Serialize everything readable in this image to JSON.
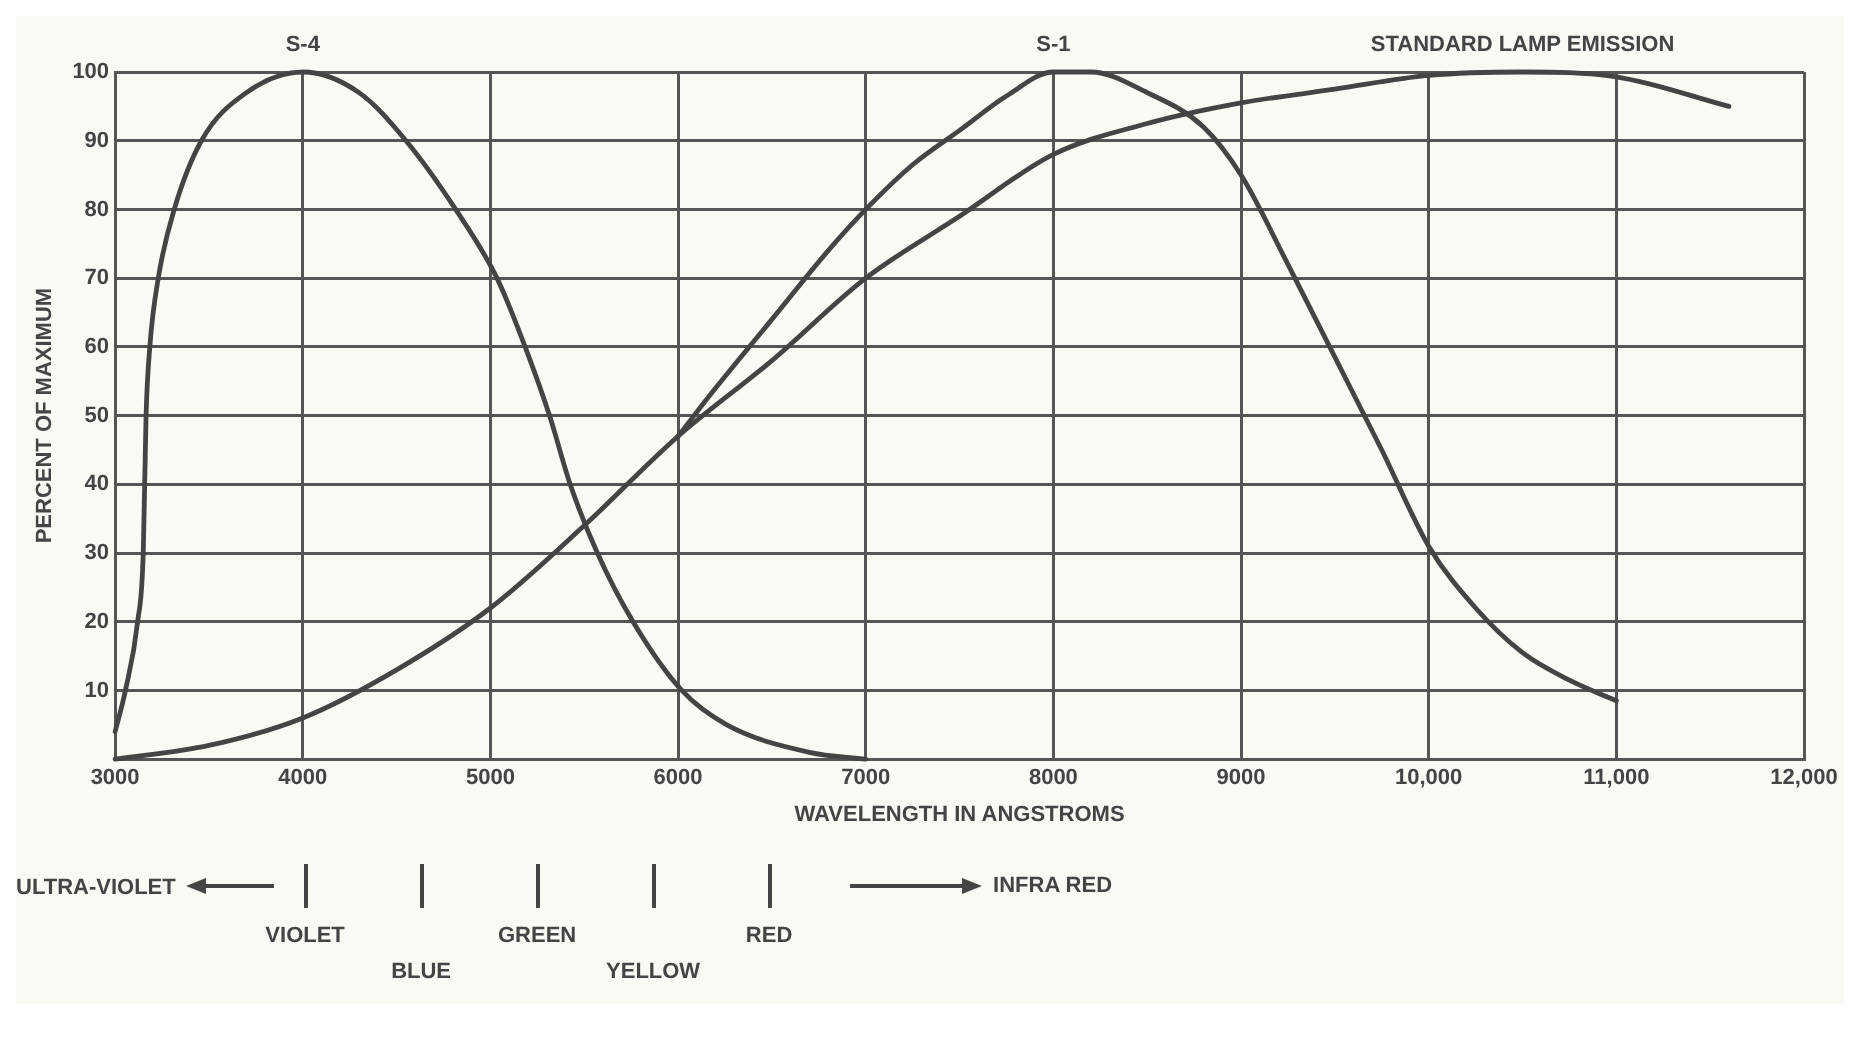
{
  "chart_data": {
    "type": "line",
    "xlabel": "WAVELENGTH IN ANGSTROMS",
    "ylabel": "PERCENT OF MAXIMUM",
    "xlim": [
      3000,
      12000
    ],
    "xticks": [
      3000,
      4000,
      5000,
      6000,
      7000,
      8000,
      9000,
      {
        "value": 10000,
        "label": "10,000"
      },
      {
        "value": 11000,
        "label": "11,000"
      },
      {
        "value": 12000,
        "label": "12,000"
      }
    ],
    "ylim": [
      0,
      100
    ],
    "yticks": [
      {
        "value": 0,
        "label": null
      },
      10,
      20,
      30,
      40,
      50,
      60,
      70,
      80,
      90,
      100
    ],
    "grid": true,
    "legend": false,
    "marker": "none",
    "line_style": "solid",
    "series": [
      {
        "name": "S-4",
        "color": "#444444",
        "x": [
          3000,
          3055,
          3120,
          3150,
          3165,
          3185,
          3230,
          3315,
          3460,
          3700,
          4000,
          4300,
          4550,
          4815,
          5035,
          5185,
          5315,
          5425,
          5570,
          5760,
          6020,
          6260,
          6700,
          7000
        ],
        "values": [
          4,
          10,
          20,
          30,
          50,
          60,
          70,
          80,
          90,
          97,
          100,
          97,
          90,
          80,
          70,
          60,
          50,
          40,
          30,
          20,
          10,
          5,
          1,
          0
        ]
      },
      {
        "name": "S-1",
        "color": "#444444",
        "x": [
          6000,
          6200,
          6500,
          6800,
          7000,
          7250,
          7500,
          7750,
          8000,
          8200,
          8500,
          8800,
          9000,
          9250,
          9500,
          9750,
          10000,
          10250,
          10500,
          10750,
          11000
        ],
        "values": [
          47,
          54,
          64,
          74,
          80,
          86.5,
          91.5,
          96.5,
          100,
          100,
          97,
          92,
          85,
          72,
          58.5,
          45,
          31,
          22,
          15.5,
          11.5,
          8.5
        ]
      },
      {
        "name": "STANDARD LAMP EMISSION",
        "color": "#444444",
        "x": [
          3000,
          3500,
          4000,
          4500,
          5000,
          5500,
          6000,
          6500,
          7000,
          7500,
          8000,
          8500,
          9000,
          9500,
          10000,
          10500,
          11000,
          11600
        ],
        "values": [
          0,
          2,
          6,
          13,
          22,
          34,
          47,
          58,
          70,
          79,
          88,
          92.5,
          95.5,
          97.5,
          99.5,
          100,
          99.3,
          95
        ]
      }
    ],
    "annotations": [
      "ULTRA-VIOLET",
      "VIOLET",
      "BLUE",
      "GREEN",
      "YELLOW",
      "RED",
      "INFRA RED"
    ]
  }
}
